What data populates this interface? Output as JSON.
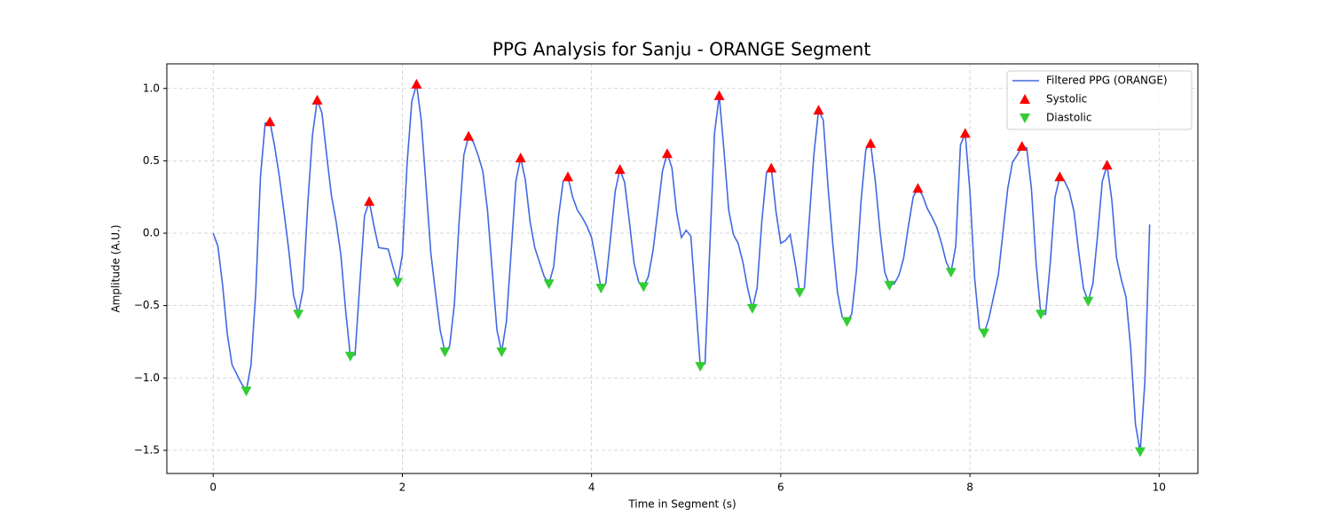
{
  "chart_data": {
    "type": "line",
    "title": "PPG Analysis for Sanju - ORANGE Segment",
    "xlabel": "Time in Segment (s)",
    "ylabel": "Amplitude (A.U.)",
    "xlim": [
      -0.49,
      10.41
    ],
    "ylim": [
      -1.66,
      1.17
    ],
    "xticks": [
      0,
      2,
      4,
      6,
      8,
      10
    ],
    "yticks": [
      {
        "value": -1.5,
        "label": "−1.5"
      },
      {
        "value": -1.0,
        "label": "−1.0"
      },
      {
        "value": -0.5,
        "label": "−0.5"
      },
      {
        "value": 0.0,
        "label": "0.0"
      },
      {
        "value": 0.5,
        "label": "0.5"
      },
      {
        "value": 1.0,
        "label": "1.0"
      }
    ],
    "grid": true,
    "legend": "upper right",
    "series": [
      {
        "name": "Filtered PPG (ORANGE)",
        "type": "line",
        "color": "#4169e1",
        "x": [
          0,
          0.05,
          0.1,
          0.15,
          0.2,
          0.3,
          0.35,
          0.4,
          0.45,
          0.5,
          0.55,
          0.6,
          0.65,
          0.7,
          0.75,
          0.8,
          0.85,
          0.9,
          0.95,
          1.0,
          1.05,
          1.1,
          1.15,
          1.2,
          1.25,
          1.3,
          1.35,
          1.4,
          1.45,
          1.5,
          1.55,
          1.6,
          1.65,
          1.7,
          1.75,
          1.85,
          1.9,
          1.95,
          2.0,
          2.05,
          2.1,
          2.15,
          2.2,
          2.25,
          2.3,
          2.35,
          2.4,
          2.45,
          2.5,
          2.55,
          2.6,
          2.65,
          2.7,
          2.75,
          2.8,
          2.85,
          2.9,
          2.95,
          3.0,
          3.05,
          3.1,
          3.15,
          3.2,
          3.25,
          3.3,
          3.35,
          3.4,
          3.45,
          3.5,
          3.55,
          3.6,
          3.65,
          3.7,
          3.75,
          3.8,
          3.85,
          3.9,
          3.95,
          4.0,
          4.05,
          4.1,
          4.15,
          4.2,
          4.25,
          4.3,
          4.35,
          4.4,
          4.45,
          4.5,
          4.55,
          4.6,
          4.65,
          4.7,
          4.75,
          4.8,
          4.85,
          4.9,
          4.95,
          5.0,
          5.05,
          5.1,
          5.15,
          5.2,
          5.25,
          5.3,
          5.35,
          5.4,
          5.45,
          5.5,
          5.55,
          5.6,
          5.65,
          5.7,
          5.75,
          5.8,
          5.85,
          5.9,
          5.95,
          6.0,
          6.05,
          6.1,
          6.15,
          6.2,
          6.25,
          6.3,
          6.35,
          6.4,
          6.45,
          6.5,
          6.55,
          6.6,
          6.65,
          6.7,
          6.75,
          6.8,
          6.85,
          6.9,
          6.95,
          7.0,
          7.05,
          7.1,
          7.15,
          7.2,
          7.25,
          7.3,
          7.35,
          7.4,
          7.45,
          7.5,
          7.55,
          7.6,
          7.65,
          7.7,
          7.75,
          7.8,
          7.85,
          7.9,
          7.95,
          8.0,
          8.05,
          8.1,
          8.15,
          8.2,
          8.25,
          8.3,
          8.35,
          8.4,
          8.45,
          8.5,
          8.55,
          8.6,
          8.65,
          8.7,
          8.75,
          8.8,
          8.85,
          8.9,
          8.95,
          9.0,
          9.05,
          9.1,
          9.15,
          9.2,
          9.25,
          9.3,
          9.35,
          9.4,
          9.45,
          9.5,
          9.55,
          9.6,
          9.65,
          9.7,
          9.75,
          9.8,
          9.85,
          9.9
        ],
        "values": [
          0,
          -0.09,
          -0.36,
          -0.7,
          -0.91,
          -1.04,
          -1.09,
          -0.91,
          -0.41,
          0.39,
          0.76,
          0.77,
          0.6,
          0.39,
          0.14,
          -0.12,
          -0.43,
          -0.56,
          -0.39,
          0.2,
          0.68,
          0.92,
          0.83,
          0.54,
          0.26,
          0.08,
          -0.15,
          -0.53,
          -0.85,
          -0.84,
          -0.35,
          0.12,
          0.22,
          0.05,
          -0.1,
          -0.11,
          -0.23,
          -0.34,
          -0.15,
          0.48,
          0.91,
          1.03,
          0.78,
          0.33,
          -0.13,
          -0.41,
          -0.67,
          -0.82,
          -0.78,
          -0.49,
          0.08,
          0.54,
          0.67,
          0.63,
          0.54,
          0.43,
          0.16,
          -0.26,
          -0.67,
          -0.82,
          -0.61,
          -0.13,
          0.36,
          0.52,
          0.37,
          0.08,
          -0.1,
          -0.2,
          -0.3,
          -0.35,
          -0.23,
          0.11,
          0.36,
          0.39,
          0.25,
          0.16,
          0.11,
          0.05,
          -0.03,
          -0.2,
          -0.38,
          -0.35,
          -0.04,
          0.29,
          0.44,
          0.35,
          0.08,
          -0.21,
          -0.34,
          -0.37,
          -0.3,
          -0.12,
          0.15,
          0.43,
          0.55,
          0.45,
          0.14,
          -0.03,
          0.02,
          -0.02,
          -0.47,
          -0.92,
          -0.9,
          -0.1,
          0.69,
          0.95,
          0.57,
          0.16,
          -0.01,
          -0.07,
          -0.2,
          -0.38,
          -0.52,
          -0.38,
          0.08,
          0.42,
          0.45,
          0.15,
          -0.07,
          -0.05,
          -0.01,
          -0.2,
          -0.41,
          -0.38,
          0.08,
          0.54,
          0.85,
          0.78,
          0.32,
          -0.07,
          -0.41,
          -0.58,
          -0.61,
          -0.56,
          -0.26,
          0.23,
          0.58,
          0.62,
          0.36,
          0.01,
          -0.27,
          -0.36,
          -0.35,
          -0.29,
          -0.17,
          0.05,
          0.25,
          0.31,
          0.26,
          0.17,
          0.11,
          0.04,
          -0.07,
          -0.2,
          -0.27,
          -0.09,
          0.61,
          0.69,
          0.29,
          -0.31,
          -0.66,
          -0.69,
          -0.59,
          -0.44,
          -0.29,
          0.01,
          0.31,
          0.49,
          0.54,
          0.6,
          0.59,
          0.31,
          -0.21,
          -0.56,
          -0.56,
          -0.2,
          0.25,
          0.39,
          0.36,
          0.29,
          0.15,
          -0.13,
          -0.38,
          -0.47,
          -0.35,
          -0.01,
          0.36,
          0.47,
          0.23,
          -0.17,
          -0.32,
          -0.44,
          -0.8,
          -1.32,
          -1.51,
          -1.02,
          0.06
        ]
      },
      {
        "name": "Systolic",
        "type": "scatter",
        "marker": "triangle-up",
        "color": "#ff0000",
        "x": [
          0.6,
          1.1,
          1.65,
          2.15,
          2.7,
          3.25,
          3.75,
          4.3,
          4.8,
          5.35,
          5.9,
          6.4,
          6.95,
          7.45,
          7.95,
          8.55,
          8.95,
          9.45
        ],
        "values": [
          0.77,
          0.92,
          0.22,
          1.03,
          0.67,
          0.52,
          0.39,
          0.44,
          0.55,
          0.95,
          0.45,
          0.85,
          0.62,
          0.31,
          0.69,
          0.6,
          0.39,
          0.47
        ]
      },
      {
        "name": "Diastolic",
        "type": "scatter",
        "marker": "triangle-down",
        "color": "#32cd32",
        "x": [
          0.35,
          0.9,
          1.45,
          1.95,
          2.45,
          3.05,
          3.55,
          4.1,
          4.55,
          5.15,
          5.7,
          6.2,
          6.7,
          7.15,
          7.8,
          8.15,
          8.75,
          9.25,
          9.8
        ],
        "values": [
          -1.09,
          -0.56,
          -0.85,
          -0.34,
          -0.82,
          -0.82,
          -0.35,
          -0.38,
          -0.37,
          -0.92,
          -0.52,
          -0.41,
          -0.61,
          -0.36,
          -0.27,
          -0.69,
          -0.56,
          -0.47,
          -1.51
        ]
      }
    ]
  }
}
